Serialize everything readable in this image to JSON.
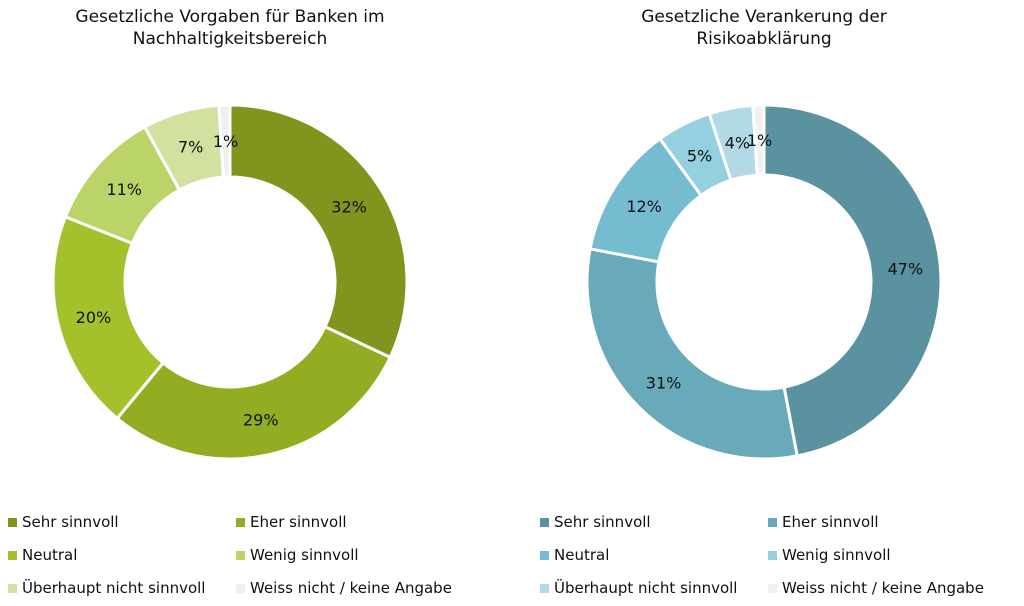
{
  "chart_data": [
    {
      "type": "pie",
      "title": "Gesetzliche Vorgaben für Banken im Nachhaltigkeitsbereich",
      "categories": [
        "Sehr sinnvoll",
        "Eher sinnvoll",
        "Neutral",
        "Wenig sinnvoll",
        "Überhaupt nicht sinnvoll",
        "Weiss nicht / keine Angabe"
      ],
      "values": [
        32,
        29,
        20,
        11,
        7,
        1
      ],
      "labels": [
        "32%",
        "29%",
        "20%",
        "11%",
        "7%",
        "1%"
      ],
      "colors": [
        "#7F951E",
        "#93AD22",
        "#A3C12B",
        "#BBD46A",
        "#D2E0A0",
        "#F0F0F0"
      ],
      "legend_position": "bottom"
    },
    {
      "type": "pie",
      "title": "Gesetzliche Verankerung der Risikoabklärung",
      "categories": [
        "Sehr sinnvoll",
        "Eher sinnvoll",
        "Neutral",
        "Wenig sinnvoll",
        "Überhaupt nicht sinnvoll",
        "Weiss nicht / keine Angabe"
      ],
      "values": [
        47,
        31,
        12,
        5,
        4,
        1
      ],
      "labels": [
        "47%",
        "31%",
        "12%",
        "5%",
        "4%",
        "1%"
      ],
      "colors": [
        "#5A929F",
        "#68AAB9",
        "#76BCD0",
        "#94D0DF",
        "#B2DAE6",
        "#F0F0F0"
      ],
      "legend_position": "bottom"
    }
  ]
}
